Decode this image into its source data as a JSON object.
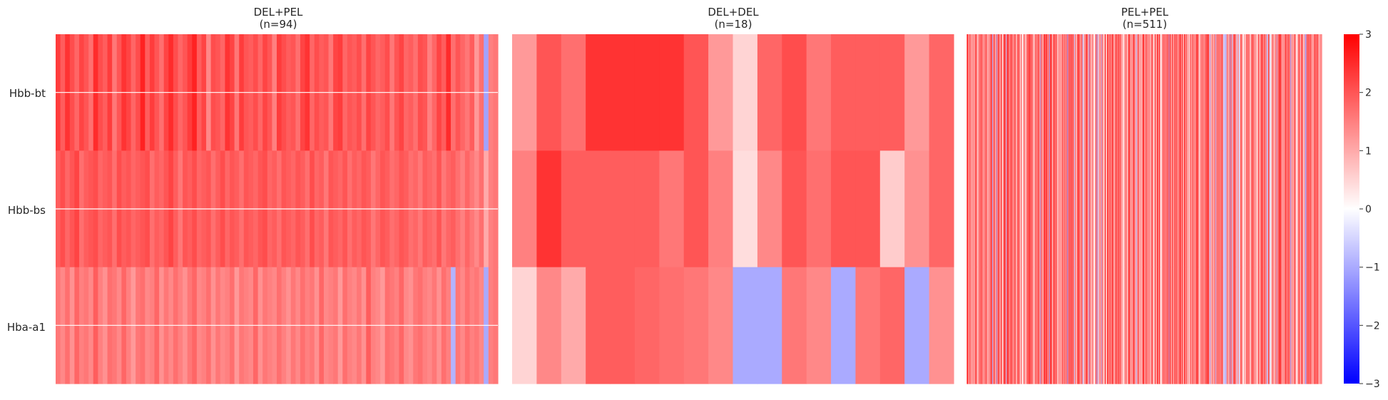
{
  "chart_data": {
    "type": "heatmap",
    "rows": [
      "Hbb-bt",
      "Hbb-bs",
      "Hba-a1"
    ],
    "colorbar": {
      "min": -3,
      "max": 3,
      "ticks": [
        "3",
        "2",
        "1",
        "0",
        "−1",
        "−2",
        "−3"
      ],
      "colormap": "bwr",
      "colors": {
        "low": "#0000ff",
        "mid": "#ffffff",
        "high": "#ff0000"
      }
    },
    "panels": [
      {
        "title": "DEL+PEL",
        "subtitle": "(n=94)",
        "n": 94,
        "values": [
          [
            2.3,
            1.9,
            2.4,
            2.1,
            1.8,
            2.2,
            2.0,
            1.7,
            2.5,
            2.1,
            1.9,
            2.3,
            1.6,
            2.0,
            2.4,
            2.2,
            1.8,
            2.1,
            2.6,
            1.9,
            2.3,
            2.0,
            1.7,
            2.2,
            2.5,
            2.1,
            1.8,
            2.0,
            2.3,
            2.6,
            1.9,
            2.2,
            1.4,
            2.1,
            2.0,
            1.8,
            2.4,
            2.2,
            1.6,
            2.3,
            2.0,
            1.9,
            2.1,
            1.8,
            2.2,
            2.0,
            1.5,
            2.3,
            2.1,
            1.9,
            2.0,
            1.7,
            2.2,
            2.4,
            1.8,
            2.1,
            1.9,
            2.0,
            1.6,
            2.2,
            2.3,
            1.8,
            2.0,
            1.9,
            2.1,
            1.7,
            2.2,
            2.0,
            1.8,
            1.9,
            2.1,
            1.6,
            2.0,
            2.2,
            1.8,
            1.9,
            1.7,
            2.1,
            2.0,
            1.5,
            1.8,
            2.2,
            1.9,
            2.5,
            1.7,
            2.0,
            1.8,
            1.6,
            1.9,
            1.2,
            1.7,
            -1.1,
            1.5,
            1.6
          ],
          [
            1.9,
            2.1,
            1.8,
            2.0,
            2.2,
            1.7,
            1.9,
            2.0,
            2.1,
            1.8,
            1.9,
            2.0,
            1.7,
            2.1,
            1.9,
            2.0,
            1.8,
            1.9,
            2.0,
            2.1,
            1.7,
            1.9,
            1.8,
            2.0,
            2.2,
            1.9,
            1.6,
            2.0,
            1.9,
            2.1,
            1.8,
            1.9,
            2.0,
            1.7,
            1.9,
            2.1,
            1.8,
            2.0,
            1.9,
            1.7,
            2.0,
            1.9,
            1.8,
            2.0,
            2.1,
            1.8,
            1.9,
            1.7,
            2.0,
            1.9,
            1.8,
            2.0,
            1.9,
            1.7,
            2.1,
            1.8,
            1.9,
            1.6,
            2.0,
            1.9,
            1.8,
            2.0,
            1.7,
            1.9,
            1.8,
            2.0,
            1.9,
            1.6,
            1.8,
            2.0,
            1.9,
            1.7,
            1.8,
            2.0,
            1.9,
            1.7,
            1.8,
            1.6,
            1.9,
            1.8,
            1.7,
            2.0,
            1.6,
            1.8,
            1.9,
            1.7,
            1.5,
            1.8,
            1.6,
            1.4,
            1.7,
            1.0,
            1.5,
            1.6
          ],
          [
            1.6,
            1.4,
            1.7,
            1.3,
            1.8,
            1.5,
            1.6,
            1.4,
            1.9,
            1.5,
            1.3,
            1.7,
            1.6,
            1.4,
            1.8,
            1.5,
            1.2,
            1.6,
            1.7,
            1.4,
            1.5,
            1.8,
            1.3,
            1.6,
            1.4,
            1.7,
            1.5,
            1.3,
            1.6,
            1.8,
            1.4,
            1.5,
            1.7,
            1.3,
            1.6,
            1.4,
            1.5,
            1.7,
            1.2,
            1.6,
            1.5,
            1.4,
            1.8,
            1.3,
            1.6,
            1.5,
            1.4,
            1.7,
            1.5,
            1.3,
            1.6,
            1.4,
            1.7,
            1.5,
            1.6,
            1.3,
            1.8,
            1.4,
            1.5,
            1.6,
            1.2,
            1.7,
            1.5,
            1.4,
            1.6,
            1.3,
            1.9,
            1.5,
            1.4,
            1.2,
            1.7,
            1.6,
            1.5,
            1.8,
            1.4,
            1.3,
            1.6,
            1.7,
            1.5,
            1.4,
            1.6,
            1.3,
            1.7,
            1.5,
            -0.9,
            1.6,
            1.4,
            1.7,
            1.5,
            1.6,
            1.4,
            -1.0,
            1.5,
            1.6
          ]
        ]
      },
      {
        "title": "DEL+DEL",
        "subtitle": "(n=18)",
        "n": 18,
        "values": [
          [
            1.2,
            2.0,
            1.7,
            2.4,
            2.4,
            2.4,
            2.4,
            2.0,
            1.2,
            0.5,
            1.8,
            2.1,
            1.6,
            1.9,
            1.9,
            1.9,
            1.2,
            1.8
          ],
          [
            1.5,
            2.4,
            1.9,
            1.9,
            1.9,
            1.9,
            1.6,
            2.0,
            1.5,
            0.4,
            1.4,
            2.0,
            1.7,
            2.0,
            2.0,
            0.6,
            1.3,
            1.8
          ],
          [
            0.5,
            1.4,
            1.0,
            1.9,
            1.9,
            1.8,
            1.7,
            1.6,
            1.4,
            -1.0,
            -1.0,
            1.6,
            1.4,
            -1.0,
            1.6,
            1.8,
            -1.0,
            1.3
          ]
        ]
      },
      {
        "title": "PEL+PEL",
        "subtitle": "(n=511)",
        "n": 511
      }
    ]
  }
}
